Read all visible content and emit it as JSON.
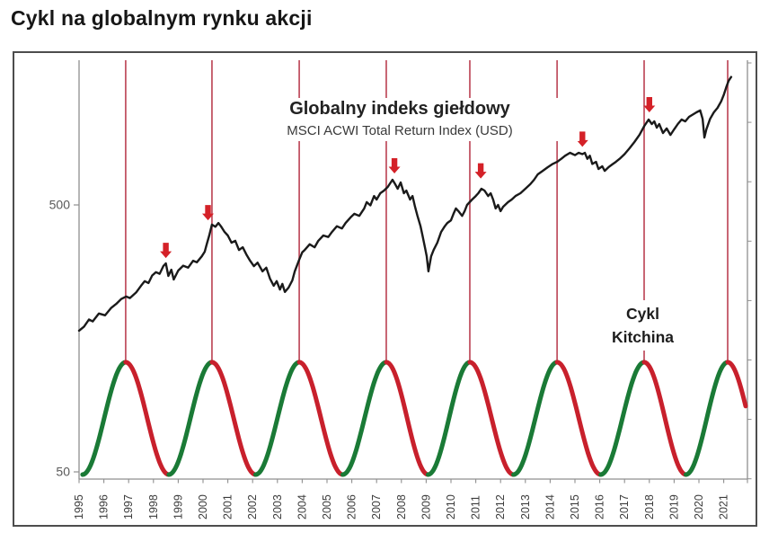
{
  "page_title": "Cykl na globalnym rynku akcji",
  "chart_data": {
    "type": "line",
    "title": "Globalny indeks giełdowy",
    "subtitle": "MSCI ACWI Total Return Index (USD)",
    "cycle_label": {
      "line1": "Cykl",
      "line2": "Kitchina"
    },
    "x_axis": {
      "tick_years": [
        1995,
        1996,
        1997,
        1998,
        1999,
        2000,
        2001,
        2002,
        2003,
        2004,
        2005,
        2006,
        2007,
        2008,
        2009,
        2010,
        2011,
        2012,
        2013,
        2014,
        2015,
        2016,
        2017,
        2018,
        2019,
        2020,
        2021
      ]
    },
    "y_axis": {
      "scale": "log",
      "tick_values": [
        500,
        50
      ],
      "range": [
        45,
        1700
      ]
    },
    "price_series": {
      "name": "MSCI ACWI Total Return Index (USD)",
      "color": "#1a1a1a",
      "points": [
        [
          1995.0,
          169
        ],
        [
          1995.2,
          175
        ],
        [
          1995.4,
          186
        ],
        [
          1995.55,
          183
        ],
        [
          1995.8,
          196
        ],
        [
          1996.05,
          193
        ],
        [
          1996.3,
          206
        ],
        [
          1996.5,
          213
        ],
        [
          1996.7,
          222
        ],
        [
          1996.9,
          227
        ],
        [
          1997.05,
          224
        ],
        [
          1997.3,
          235
        ],
        [
          1997.5,
          249
        ],
        [
          1997.65,
          259
        ],
        [
          1997.8,
          255
        ],
        [
          1997.95,
          272
        ],
        [
          1998.1,
          280
        ],
        [
          1998.25,
          276
        ],
        [
          1998.4,
          295
        ],
        [
          1998.5,
          302
        ],
        [
          1998.6,
          271
        ],
        [
          1998.72,
          286
        ],
        [
          1998.82,
          263
        ],
        [
          1999.0,
          284
        ],
        [
          1999.2,
          296
        ],
        [
          1999.4,
          291
        ],
        [
          1999.6,
          309
        ],
        [
          1999.75,
          305
        ],
        [
          1999.95,
          321
        ],
        [
          2000.07,
          334
        ],
        [
          2000.15,
          356
        ],
        [
          2000.25,
          384
        ],
        [
          2000.36,
          422
        ],
        [
          2000.5,
          414
        ],
        [
          2000.62,
          428
        ],
        [
          2000.72,
          416
        ],
        [
          2000.87,
          396
        ],
        [
          2001.0,
          384
        ],
        [
          2001.15,
          361
        ],
        [
          2001.3,
          367
        ],
        [
          2001.45,
          339
        ],
        [
          2001.6,
          347
        ],
        [
          2001.75,
          326
        ],
        [
          2001.9,
          309
        ],
        [
          2002.05,
          295
        ],
        [
          2002.2,
          304
        ],
        [
          2002.4,
          282
        ],
        [
          2002.55,
          291
        ],
        [
          2002.7,
          265
        ],
        [
          2002.85,
          249
        ],
        [
          2002.97,
          259
        ],
        [
          2003.1,
          241
        ],
        [
          2003.2,
          253
        ],
        [
          2003.3,
          236
        ],
        [
          2003.45,
          245
        ],
        [
          2003.6,
          261
        ],
        [
          2003.7,
          282
        ],
        [
          2003.88,
          312
        ],
        [
          2004.0,
          332
        ],
        [
          2004.1,
          339
        ],
        [
          2004.3,
          356
        ],
        [
          2004.5,
          347
        ],
        [
          2004.65,
          367
        ],
        [
          2004.85,
          384
        ],
        [
          2005.05,
          379
        ],
        [
          2005.2,
          396
        ],
        [
          2005.4,
          416
        ],
        [
          2005.6,
          408
        ],
        [
          2005.75,
          428
        ],
        [
          2005.95,
          449
        ],
        [
          2006.1,
          463
        ],
        [
          2006.3,
          455
        ],
        [
          2006.5,
          485
        ],
        [
          2006.6,
          512
        ],
        [
          2006.75,
          498
        ],
        [
          2006.9,
          540
        ],
        [
          2007.0,
          524
        ],
        [
          2007.15,
          553
        ],
        [
          2007.3,
          566
        ],
        [
          2007.45,
          584
        ],
        [
          2007.64,
          621
        ],
        [
          2007.75,
          598
        ],
        [
          2007.85,
          575
        ],
        [
          2007.97,
          607
        ],
        [
          2008.1,
          553
        ],
        [
          2008.2,
          566
        ],
        [
          2008.35,
          524
        ],
        [
          2008.45,
          540
        ],
        [
          2008.55,
          492
        ],
        [
          2008.65,
          455
        ],
        [
          2008.77,
          416
        ],
        [
          2008.85,
          384
        ],
        [
          2008.95,
          347
        ],
        [
          2009.02,
          321
        ],
        [
          2009.09,
          282
        ],
        [
          2009.2,
          321
        ],
        [
          2009.3,
          339
        ],
        [
          2009.45,
          361
        ],
        [
          2009.6,
          396
        ],
        [
          2009.75,
          416
        ],
        [
          2009.85,
          428
        ],
        [
          2010.0,
          438
        ],
        [
          2010.1,
          463
        ],
        [
          2010.2,
          485
        ],
        [
          2010.3,
          474
        ],
        [
          2010.45,
          455
        ],
        [
          2010.55,
          474
        ],
        [
          2010.65,
          500
        ],
        [
          2010.85,
          524
        ],
        [
          2011.0,
          540
        ],
        [
          2011.1,
          553
        ],
        [
          2011.23,
          575
        ],
        [
          2011.35,
          566
        ],
        [
          2011.5,
          540
        ],
        [
          2011.6,
          553
        ],
        [
          2011.7,
          524
        ],
        [
          2011.8,
          485
        ],
        [
          2011.9,
          500
        ],
        [
          2012.0,
          474
        ],
        [
          2012.1,
          492
        ],
        [
          2012.3,
          512
        ],
        [
          2012.45,
          524
        ],
        [
          2012.6,
          540
        ],
        [
          2012.8,
          553
        ],
        [
          2013.0,
          575
        ],
        [
          2013.2,
          598
        ],
        [
          2013.35,
          621
        ],
        [
          2013.5,
          651
        ],
        [
          2013.7,
          671
        ],
        [
          2013.9,
          692
        ],
        [
          2014.1,
          712
        ],
        [
          2014.28,
          725
        ],
        [
          2014.45,
          744
        ],
        [
          2014.6,
          764
        ],
        [
          2014.8,
          784
        ],
        [
          2015.0,
          768
        ],
        [
          2015.15,
          784
        ],
        [
          2015.3,
          775
        ],
        [
          2015.4,
          784
        ],
        [
          2015.5,
          744
        ],
        [
          2015.6,
          764
        ],
        [
          2015.7,
          712
        ],
        [
          2015.85,
          725
        ],
        [
          2015.95,
          682
        ],
        [
          2016.1,
          698
        ],
        [
          2016.2,
          671
        ],
        [
          2016.35,
          692
        ],
        [
          2016.5,
          709
        ],
        [
          2016.65,
          725
        ],
        [
          2016.8,
          744
        ],
        [
          2017.0,
          775
        ],
        [
          2017.2,
          815
        ],
        [
          2017.4,
          860
        ],
        [
          2017.6,
          915
        ],
        [
          2017.8,
          989
        ],
        [
          2017.97,
          1044
        ],
        [
          2018.1,
          1005
        ],
        [
          2018.2,
          1028
        ],
        [
          2018.3,
          974
        ],
        [
          2018.4,
          1005
        ],
        [
          2018.55,
          930
        ],
        [
          2018.7,
          967
        ],
        [
          2018.85,
          915
        ],
        [
          2019.0,
          960
        ],
        [
          2019.15,
          1005
        ],
        [
          2019.3,
          1044
        ],
        [
          2019.45,
          1028
        ],
        [
          2019.6,
          1069
        ],
        [
          2019.75,
          1090
        ],
        [
          2019.9,
          1111
        ],
        [
          2020.05,
          1130
        ],
        [
          2020.15,
          1050
        ],
        [
          2020.22,
          894
        ],
        [
          2020.3,
          960
        ],
        [
          2020.45,
          1050
        ],
        [
          2020.6,
          1111
        ],
        [
          2020.75,
          1155
        ],
        [
          2020.9,
          1222
        ],
        [
          2021.0,
          1290
        ],
        [
          2021.1,
          1380
        ],
        [
          2021.2,
          1460
        ],
        [
          2021.3,
          1508
        ]
      ]
    },
    "kitchin_cycle": {
      "name": "Cykl Kitchina",
      "period_years": 3.49,
      "peak_years": [
        1996.88,
        2000.36,
        2003.88,
        2007.39,
        2010.76,
        2014.28,
        2017.79,
        2021.16
      ],
      "rising_color": "#1a7a36",
      "falling_color": "#c8202c"
    },
    "cycle_peak_lines": {
      "color": "#c25565"
    },
    "peak_arrows": {
      "color": "#d42128",
      "points": [
        [
          1998.5,
          316
        ],
        [
          2000.2,
          438
        ],
        [
          2007.72,
          656
        ],
        [
          2011.2,
          628
        ],
        [
          2015.3,
          825
        ],
        [
          2018.0,
          1111
        ]
      ]
    }
  }
}
